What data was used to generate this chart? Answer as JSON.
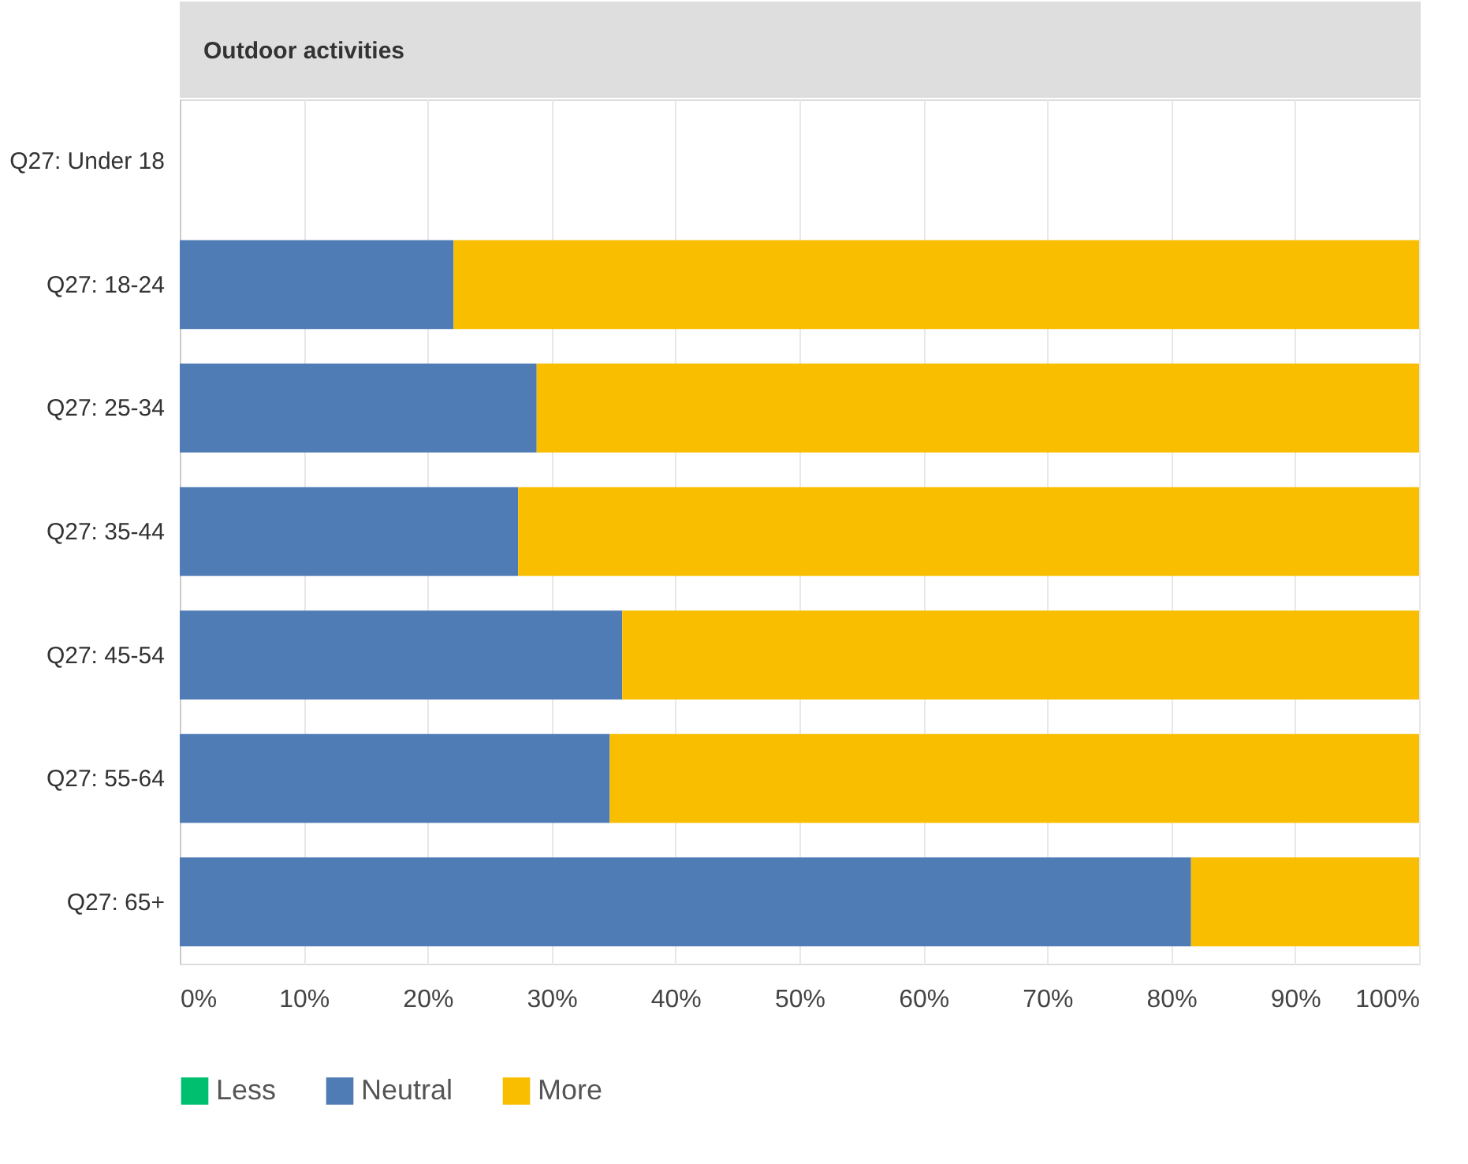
{
  "chart_data": {
    "type": "bar",
    "orientation": "horizontal",
    "stacked": true,
    "title": "Outdoor activities",
    "categories": [
      "Q27: Under 18",
      "Q27: 18-24",
      "Q27: 25-34",
      "Q27: 35-44",
      "Q27: 45-54",
      "Q27: 55-64",
      "Q27: 65+"
    ],
    "series": [
      {
        "name": "Less",
        "color": "#00bf6f",
        "values": [
          null,
          0,
          0,
          0,
          0,
          0,
          0
        ]
      },
      {
        "name": "Neutral",
        "color": "#507cb6",
        "values": [
          null,
          22.1,
          28.8,
          27.3,
          35.7,
          34.7,
          81.6
        ]
      },
      {
        "name": "More",
        "color": "#f9be00",
        "values": [
          null,
          77.9,
          71.2,
          72.7,
          64.3,
          65.3,
          18.4
        ]
      }
    ],
    "xlim": [
      0,
      100
    ],
    "xticks": [
      {
        "value": 0,
        "label": "0%"
      },
      {
        "value": 10,
        "label": "10%"
      },
      {
        "value": 20,
        "label": "20%"
      },
      {
        "value": 30,
        "label": "30%"
      },
      {
        "value": 40,
        "label": "40%"
      },
      {
        "value": 50,
        "label": "50%"
      },
      {
        "value": 60,
        "label": "60%"
      },
      {
        "value": 70,
        "label": "70%"
      },
      {
        "value": 80,
        "label": "80%"
      },
      {
        "value": 90,
        "label": "90%"
      },
      {
        "value": 100,
        "label": "100%"
      }
    ],
    "grid": "x",
    "legend": "bottom"
  }
}
